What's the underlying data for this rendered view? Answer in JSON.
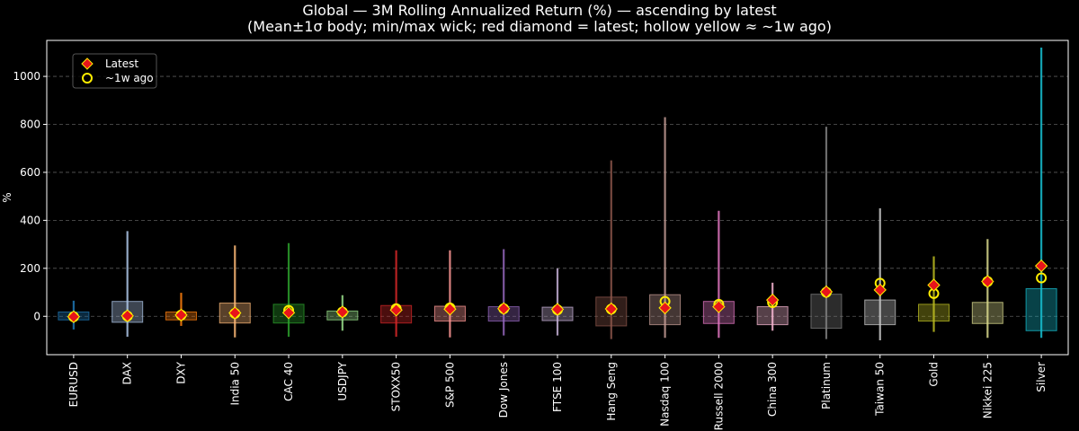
{
  "chart_data": {
    "type": "boxplot",
    "title": "Global — 3M Rolling Annualized Return (%) — ascending by latest",
    "subtitle": "(Mean±1σ body; min/max wick; red diamond = latest; hollow yellow ≈ ~1w ago)",
    "ylabel": "%",
    "ylim": [
      -160,
      1150
    ],
    "yticks": [
      0,
      200,
      400,
      600,
      800,
      1000
    ],
    "grid": true,
    "legend": {
      "placement": "top-left",
      "entries": [
        {
          "label": "Latest",
          "marker": "red-diamond"
        },
        {
          "label": "~1w ago",
          "marker": "hollow-yellow-circle"
        }
      ]
    },
    "categories": [
      "EURUSD",
      "DAX",
      "DXY",
      "India 50",
      "CAC 40",
      "USDJPY",
      "STOXX50",
      "S&P 500",
      "Dow Jones",
      "FTSE 100",
      "Hang Seng",
      "Nasdaq 100",
      "Russell 2000",
      "China 300",
      "Platinum",
      "Taiwan 50",
      "Gold",
      "Nikkei 225",
      "Silver"
    ],
    "series": [
      {
        "mean_minus_sd": -15,
        "mean_plus_sd": 18,
        "min": -55,
        "max": 65,
        "latest": -2,
        "week_ago": -2,
        "color": "#1f77b4"
      },
      {
        "mean_minus_sd": -25,
        "mean_plus_sd": 62,
        "min": -85,
        "max": 355,
        "latest": 2,
        "week_ago": 1,
        "color": "#aec7e8"
      },
      {
        "mean_minus_sd": -15,
        "mean_plus_sd": 18,
        "min": -40,
        "max": 98,
        "latest": 5,
        "week_ago": 5,
        "color": "#ff7f0e"
      },
      {
        "mean_minus_sd": -28,
        "mean_plus_sd": 55,
        "min": -88,
        "max": 295,
        "latest": 14,
        "week_ago": 12,
        "color": "#ffbb78"
      },
      {
        "mean_minus_sd": -28,
        "mean_plus_sd": 50,
        "min": -85,
        "max": 305,
        "latest": 15,
        "week_ago": 25,
        "color": "#2ca02c"
      },
      {
        "mean_minus_sd": -15,
        "mean_plus_sd": 22,
        "min": -60,
        "max": 88,
        "latest": 18,
        "week_ago": 18,
        "color": "#98df8a"
      },
      {
        "mean_minus_sd": -28,
        "mean_plus_sd": 45,
        "min": -85,
        "max": 275,
        "latest": 26,
        "week_ago": 32,
        "color": "#d62728"
      },
      {
        "mean_minus_sd": -20,
        "mean_plus_sd": 42,
        "min": -88,
        "max": 275,
        "latest": 30,
        "week_ago": 35,
        "color": "#ff9896"
      },
      {
        "mean_minus_sd": -20,
        "mean_plus_sd": 40,
        "min": -80,
        "max": 280,
        "latest": 32,
        "week_ago": 32,
        "color": "#9467bd"
      },
      {
        "mean_minus_sd": -18,
        "mean_plus_sd": 38,
        "min": -80,
        "max": 200,
        "latest": 29,
        "week_ago": 27,
        "color": "#c5b0d5"
      },
      {
        "mean_minus_sd": -40,
        "mean_plus_sd": 80,
        "min": -95,
        "max": 650,
        "latest": 31,
        "week_ago": 30,
        "color": "#8c564b"
      },
      {
        "mean_minus_sd": -35,
        "mean_plus_sd": 90,
        "min": -90,
        "max": 830,
        "latest": 35,
        "week_ago": 62,
        "color": "#c49c94"
      },
      {
        "mean_minus_sd": -30,
        "mean_plus_sd": 62,
        "min": -90,
        "max": 440,
        "latest": 40,
        "week_ago": 50,
        "color": "#e377c2"
      },
      {
        "mean_minus_sd": -35,
        "mean_plus_sd": 40,
        "min": -60,
        "max": 140,
        "latest": 68,
        "week_ago": 57,
        "color": "#f7b6d2"
      },
      {
        "mean_minus_sd": -50,
        "mean_plus_sd": 92,
        "min": -95,
        "max": 790,
        "latest": 102,
        "week_ago": 100,
        "color": "#7f7f7f"
      },
      {
        "mean_minus_sd": -35,
        "mean_plus_sd": 68,
        "min": -100,
        "max": 450,
        "latest": 110,
        "week_ago": 138,
        "color": "#c7c7c7"
      },
      {
        "mean_minus_sd": -20,
        "mean_plus_sd": 50,
        "min": -65,
        "max": 250,
        "latest": 130,
        "week_ago": 95,
        "color": "#bcbd22"
      },
      {
        "mean_minus_sd": -30,
        "mean_plus_sd": 58,
        "min": -90,
        "max": 322,
        "latest": 145,
        "week_ago": 145,
        "color": "#dbdb8d"
      },
      {
        "mean_minus_sd": -60,
        "mean_plus_sd": 115,
        "min": -90,
        "max": 1120,
        "latest": 210,
        "week_ago": 160,
        "color": "#17becf"
      }
    ]
  }
}
